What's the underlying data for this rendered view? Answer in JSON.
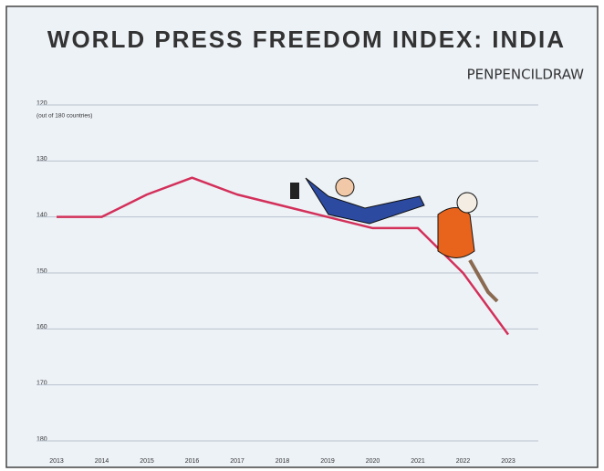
{
  "chart_data": {
    "type": "line",
    "title": "WORLD PRESS FREEDOM INDEX: INDIA",
    "signature": "PENPENCILDRAW",
    "y_note": "(out of 180 countries)",
    "categories": [
      "2013",
      "2014",
      "2015",
      "2016",
      "2017",
      "2018",
      "2019",
      "2020",
      "2021",
      "2022",
      "2023"
    ],
    "values": [
      140,
      140,
      136,
      133,
      136,
      138,
      140,
      142,
      142,
      150,
      161
    ],
    "color": "#d3305a",
    "ylim": [
      120,
      180
    ],
    "y_inverted": true,
    "yticks": [
      120,
      130,
      140,
      150,
      160,
      170,
      180
    ],
    "grid": true
  }
}
